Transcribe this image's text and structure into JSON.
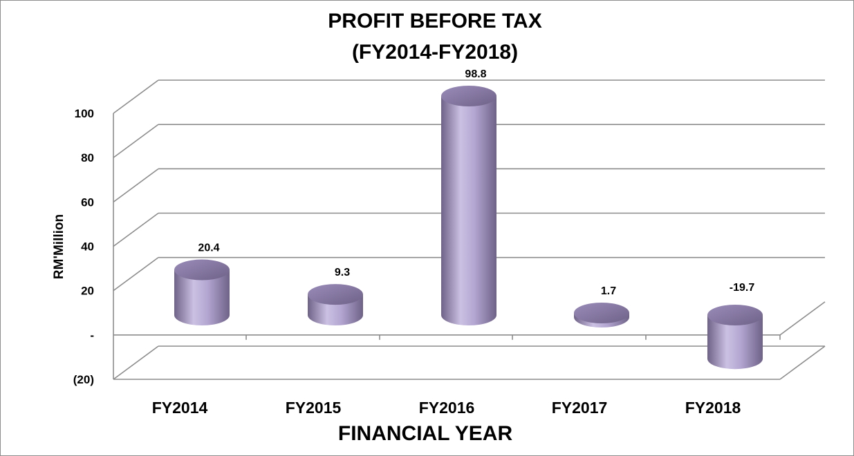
{
  "chart_data": {
    "type": "bar",
    "style": "3d-cylinder",
    "title": "PROFIT BEFORE TAX",
    "subtitle": "(FY2014-FY2018)",
    "xlabel": "FINANCIAL YEAR",
    "ylabel": "RM'Million",
    "categories": [
      "FY2014",
      "FY2015",
      "FY2016",
      "FY2017",
      "FY2018"
    ],
    "values": [
      20.4,
      9.3,
      98.8,
      1.7,
      -19.7
    ],
    "data_labels": [
      "20.4",
      "9.3",
      "98.8",
      "1.7",
      "-19.7"
    ],
    "ylim": [
      -20,
      100
    ],
    "yticks": [
      -20,
      0,
      20,
      40,
      60,
      80,
      100
    ],
    "ytick_labels": [
      "(20)",
      "-",
      "20",
      "40",
      "60",
      "80",
      "100"
    ],
    "grid": true,
    "legend": "none",
    "colors": {
      "bar": "#b3a6d1",
      "bar_dark": "#6f6288",
      "grid": "#8c8c8c"
    }
  }
}
